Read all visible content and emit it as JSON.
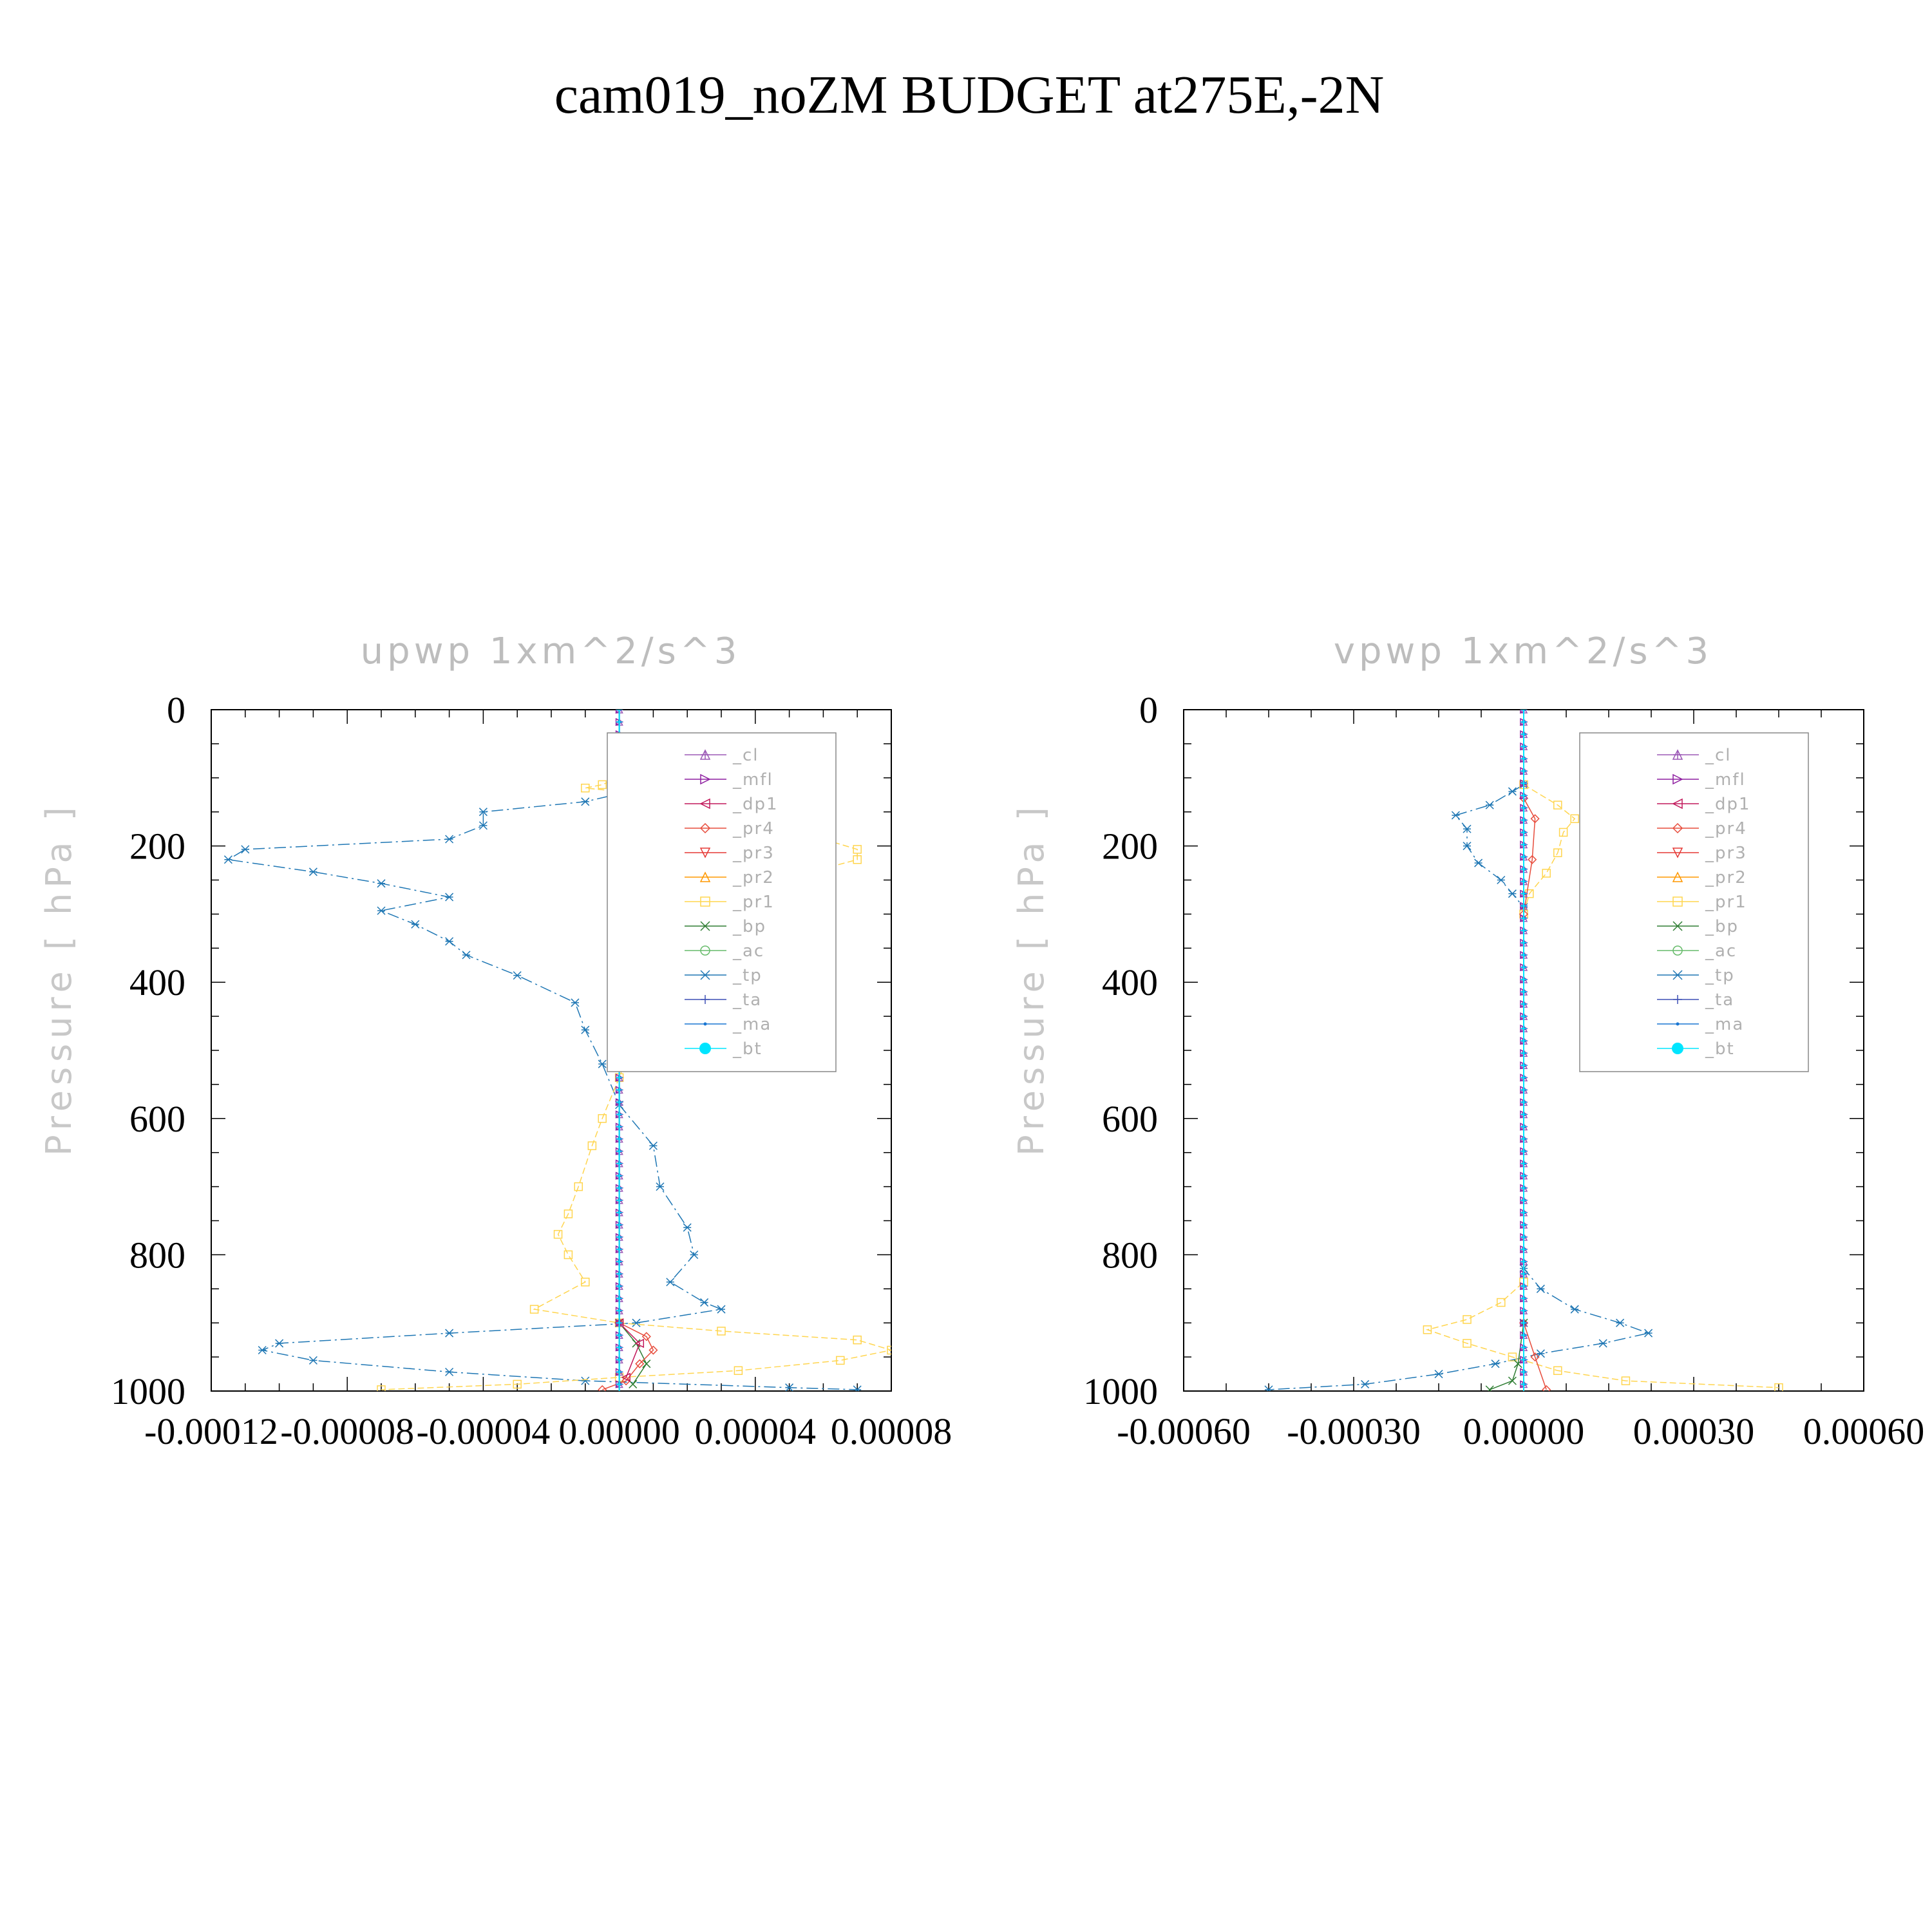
{
  "title": "cam019_noZM  BUDGET at275E,-2N",
  "colors": {
    "cl": "#9b59b6",
    "mfl": "#8e1fa0",
    "dp1": "#c2185b",
    "pr4": "#e74c3c",
    "pr3": "#e53935",
    "pr2": "#ff9800",
    "pr1": "#ffd54f",
    "bp": "#2e7d32",
    "ac": "#66bb6a",
    "tp": "#1f77b4",
    "ta": "#3f51b5",
    "ma": "#1976d2",
    "bt": "#00e5ff"
  },
  "legend": [
    {
      "key": "cl",
      "label": "_cl",
      "marker": "plus-tri"
    },
    {
      "key": "mfl",
      "label": "_mfl",
      "marker": "tri-right"
    },
    {
      "key": "dp1",
      "label": "_dp1",
      "marker": "tri-left"
    },
    {
      "key": "pr4",
      "label": "_pr4",
      "marker": "diamond"
    },
    {
      "key": "pr3",
      "label": "_pr3",
      "marker": "tri-down"
    },
    {
      "key": "pr2",
      "label": "_pr2",
      "marker": "tri-up"
    },
    {
      "key": "pr1",
      "label": "_pr1",
      "marker": "square"
    },
    {
      "key": "bp",
      "label": "_bp",
      "marker": "x"
    },
    {
      "key": "ac",
      "label": "_ac",
      "marker": "circle"
    },
    {
      "key": "tp",
      "label": "_tp",
      "marker": "asterisk"
    },
    {
      "key": "ta",
      "label": "_ta",
      "marker": "plus"
    },
    {
      "key": "ma",
      "label": "_ma",
      "marker": "dot"
    },
    {
      "key": "bt",
      "label": "_bt",
      "marker": "filled-circle"
    }
  ],
  "chart_data": [
    {
      "type": "line",
      "title": "upwp    1xm^2/s^3",
      "ylabel": "Pressure  [ hPa ]",
      "xlim": [
        -0.00012,
        8e-05
      ],
      "ylim": [
        1000,
        0
      ],
      "y_reversed": true,
      "xticks": [
        "-0.00012",
        "-0.00008",
        "-0.00004",
        "0.00000",
        "0.00004",
        "0.00008"
      ],
      "yticks": [
        "0",
        "200",
        "400",
        "600",
        "800",
        "1000"
      ],
      "legend_position": "top-right",
      "series": [
        {
          "name": "_tp",
          "key": "tp",
          "points": [
            [
              5e-06,
              105
            ],
            [
              1e-05,
              110
            ],
            [
              3e-06,
              120
            ],
            [
              -1e-05,
              135
            ],
            [
              -4e-05,
              150
            ],
            [
              -4e-05,
              170
            ],
            [
              -5e-05,
              190
            ],
            [
              -0.00011,
              205
            ],
            [
              -0.000115,
              220
            ],
            [
              -9e-05,
              238
            ],
            [
              -7e-05,
              255
            ],
            [
              -5e-05,
              275
            ],
            [
              -7e-05,
              295
            ],
            [
              -6e-05,
              315
            ],
            [
              -5e-05,
              340
            ],
            [
              -4.5e-05,
              360
            ],
            [
              -3e-05,
              390
            ],
            [
              -1.3e-05,
              430
            ],
            [
              -1e-05,
              470
            ],
            [
              -5e-06,
              520
            ],
            [
              0,
              580
            ],
            [
              1e-05,
              640
            ],
            [
              1.2e-05,
              700
            ],
            [
              2e-05,
              760
            ],
            [
              2.2e-05,
              800
            ],
            [
              1.5e-05,
              840
            ],
            [
              2.5e-05,
              870
            ],
            [
              3e-05,
              880
            ],
            [
              5e-06,
              900
            ],
            [
              -5e-05,
              915
            ],
            [
              -0.0001,
              930
            ],
            [
              -0.000105,
              940
            ],
            [
              -9e-05,
              955
            ],
            [
              -5e-05,
              972
            ],
            [
              -1e-05,
              985
            ],
            [
              5e-05,
              995
            ],
            [
              7e-05,
              998
            ]
          ]
        },
        {
          "name": "_pr1",
          "key": "pr1",
          "points": [
            [
              0,
              100
            ],
            [
              -5e-06,
              110
            ],
            [
              -1e-05,
              115
            ],
            [
              0,
              120
            ],
            [
              5e-06,
              150
            ],
            [
              1e-05,
              170
            ],
            [
              6e-05,
              190
            ],
            [
              7e-05,
              205
            ],
            [
              7e-05,
              220
            ],
            [
              5.5e-05,
              240
            ],
            [
              3e-05,
              260
            ],
            [
              2e-05,
              280
            ],
            [
              2e-05,
              310
            ],
            [
              1.5e-05,
              350
            ],
            [
              1e-05,
              380
            ],
            [
              5e-06,
              420
            ],
            [
              4e-06,
              460
            ],
            [
              3e-06,
              500
            ],
            [
              0,
              540
            ],
            [
              -5e-06,
              600
            ],
            [
              -8e-06,
              640
            ],
            [
              -1.2e-05,
              700
            ],
            [
              -1.5e-05,
              740
            ],
            [
              -1.8e-05,
              770
            ],
            [
              -1.5e-05,
              800
            ],
            [
              -1e-05,
              840
            ],
            [
              -2.5e-05,
              880
            ],
            [
              0,
              900
            ],
            [
              3e-05,
              912
            ],
            [
              7e-05,
              925
            ],
            [
              8e-05,
              940
            ],
            [
              6.5e-05,
              955
            ],
            [
              3.5e-05,
              970
            ],
            [
              0,
              980
            ],
            [
              -3e-05,
              990
            ],
            [
              -7e-05,
              998
            ]
          ]
        },
        {
          "name": "_bp",
          "key": "bp",
          "points": [
            [
              0,
              180
            ],
            [
              1e-05,
              200
            ],
            [
              1.5e-05,
              215
            ],
            [
              8e-06,
              260
            ],
            [
              5e-06,
              300
            ],
            [
              0,
              400
            ],
            [
              0,
              900
            ],
            [
              5e-06,
              930
            ],
            [
              8e-06,
              960
            ],
            [
              4e-06,
              990
            ]
          ]
        },
        {
          "name": "_pr4",
          "key": "pr4",
          "points": [
            [
              0,
              150
            ],
            [
              1e-05,
              195
            ],
            [
              8e-06,
              230
            ],
            [
              3e-06,
              300
            ],
            [
              0,
              400
            ],
            [
              0,
              900
            ],
            [
              8e-06,
              920
            ],
            [
              1e-05,
              940
            ],
            [
              6e-06,
              960
            ],
            [
              2e-06,
              985
            ],
            [
              -5e-06,
              998
            ]
          ]
        },
        {
          "name": "_dp1",
          "key": "dp1",
          "points": [
            [
              0,
              150
            ],
            [
              1e-05,
              200
            ],
            [
              5e-06,
              260
            ],
            [
              0,
              400
            ],
            [
              0,
              900
            ],
            [
              6e-06,
              930
            ],
            [
              2e-06,
              980
            ]
          ]
        },
        {
          "name": "_cl",
          "key": "cl",
          "points": [
            [
              0,
              0
            ],
            [
              0,
              1000
            ]
          ]
        },
        {
          "name": "_mfl",
          "key": "mfl",
          "points": [
            [
              0,
              0
            ],
            [
              0,
              1000
            ]
          ]
        },
        {
          "name": "_ma",
          "key": "ma",
          "points": [
            [
              0,
              0
            ],
            [
              0,
              1000
            ]
          ]
        },
        {
          "name": "_bt",
          "key": "bt",
          "points": [
            [
              0,
              0
            ],
            [
              0,
              1000
            ]
          ]
        }
      ]
    },
    {
      "type": "line",
      "title": "vpwp    1xm^2/s^3",
      "ylabel": "Pressure  [ hPa ]",
      "xlim": [
        -0.0006,
        0.0006
      ],
      "ylim": [
        1000,
        0
      ],
      "y_reversed": true,
      "xticks": [
        "-0.00060",
        "-0.00030",
        "0.00000",
        "0.00030",
        "0.00060"
      ],
      "yticks": [
        "0",
        "200",
        "400",
        "600",
        "800",
        "1000"
      ],
      "legend_position": "top-right",
      "series": [
        {
          "name": "_tp",
          "key": "tp",
          "points": [
            [
              0,
              110
            ],
            [
              -2e-05,
              120
            ],
            [
              -6e-05,
              140
            ],
            [
              -0.00012,
              155
            ],
            [
              -0.0001,
              175
            ],
            [
              -0.0001,
              200
            ],
            [
              -8e-05,
              225
            ],
            [
              -4e-05,
              250
            ],
            [
              -2e-05,
              270
            ],
            [
              0,
              290
            ],
            [
              0,
              820
            ],
            [
              3e-05,
              850
            ],
            [
              9e-05,
              880
            ],
            [
              0.00017,
              900
            ],
            [
              0.00022,
              915
            ],
            [
              0.00014,
              930
            ],
            [
              3e-05,
              945
            ],
            [
              -5e-05,
              960
            ],
            [
              -0.00015,
              975
            ],
            [
              -0.00028,
              990
            ],
            [
              -0.00045,
              998
            ]
          ]
        },
        {
          "name": "_pr1",
          "key": "pr1",
          "points": [
            [
              0,
              110
            ],
            [
              6e-05,
              140
            ],
            [
              9e-05,
              160
            ],
            [
              7e-05,
              180
            ],
            [
              6e-05,
              210
            ],
            [
              4e-05,
              240
            ],
            [
              1e-05,
              270
            ],
            [
              0,
              300
            ],
            [
              0,
              840
            ],
            [
              -4e-05,
              870
            ],
            [
              -0.0001,
              895
            ],
            [
              -0.00017,
              910
            ],
            [
              -0.0001,
              930
            ],
            [
              -2e-05,
              950
            ],
            [
              6e-05,
              970
            ],
            [
              0.00018,
              985
            ],
            [
              0.00045,
              995
            ]
          ]
        },
        {
          "name": "_pr4",
          "key": "pr4",
          "points": [
            [
              0,
              130
            ],
            [
              2e-05,
              160
            ],
            [
              1.5e-05,
              220
            ],
            [
              0,
              300
            ],
            [
              0,
              900
            ],
            [
              2e-05,
              950
            ],
            [
              4e-05,
              998
            ]
          ]
        },
        {
          "name": "_bp",
          "key": "bp",
          "points": [
            [
              0,
              900
            ],
            [
              -1e-05,
              960
            ],
            [
              -2e-05,
              985
            ],
            [
              -6e-05,
              998
            ]
          ]
        },
        {
          "name": "_cl",
          "key": "cl",
          "points": [
            [
              0,
              0
            ],
            [
              0,
              1000
            ]
          ]
        },
        {
          "name": "_mfl",
          "key": "mfl",
          "points": [
            [
              0,
              0
            ],
            [
              0,
              1000
            ]
          ]
        },
        {
          "name": "_ma",
          "key": "ma",
          "points": [
            [
              0,
              0
            ],
            [
              0,
              1000
            ]
          ]
        },
        {
          "name": "_bt",
          "key": "bt",
          "points": [
            [
              0,
              0
            ],
            [
              0,
              1000
            ]
          ]
        }
      ]
    }
  ]
}
